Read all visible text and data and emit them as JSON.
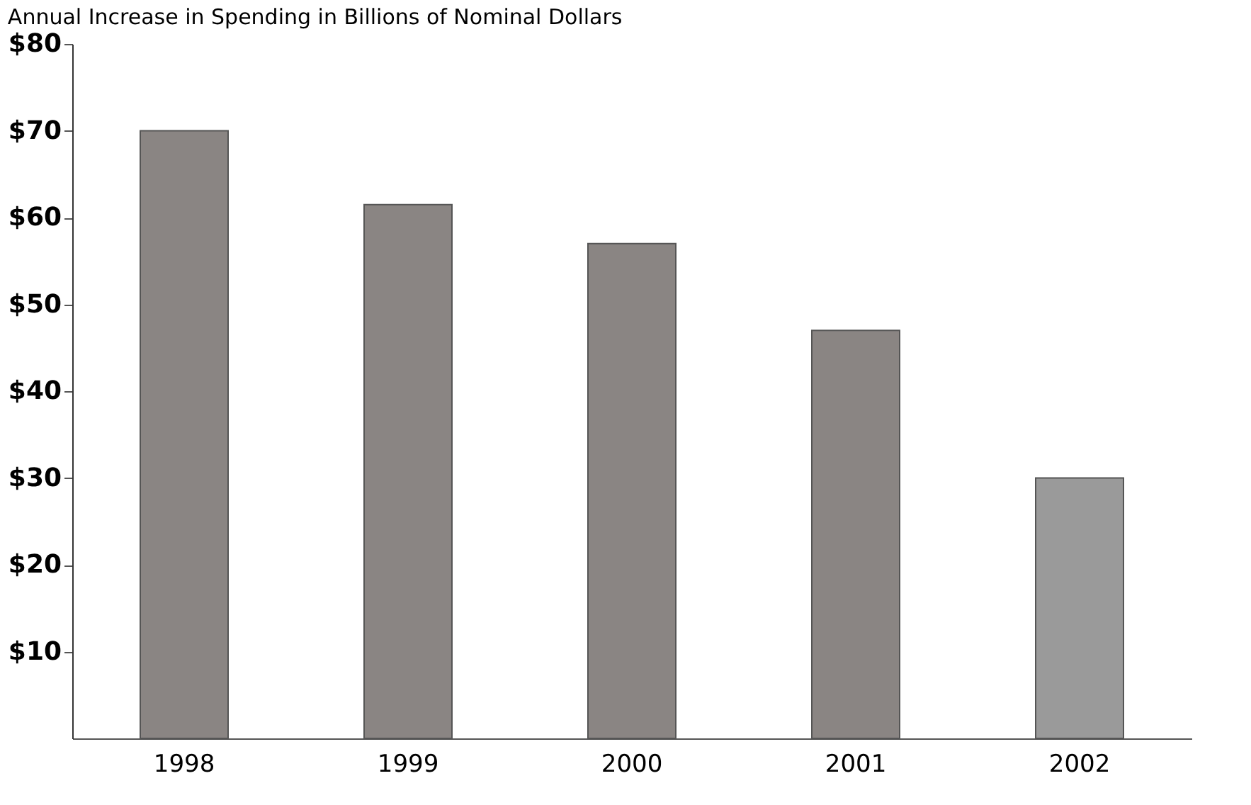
{
  "chart_data": {
    "type": "bar",
    "title": "Annual Increase in Spending in Billions of Nominal Dollars",
    "categories": [
      "1998",
      "1999",
      "2000",
      "2001",
      "2002"
    ],
    "values": [
      70,
      61.5,
      57,
      47,
      30
    ],
    "colors": [
      "#8a8583",
      "#8a8583",
      "#8a8583",
      "#8a8583",
      "#9a9a9a"
    ],
    "ylim": [
      0,
      80
    ],
    "yticks": [
      {
        "value": 10,
        "label": "$10"
      },
      {
        "value": 20,
        "label": "$20"
      },
      {
        "value": 30,
        "label": "$30"
      },
      {
        "value": 40,
        "label": "$40"
      },
      {
        "value": 50,
        "label": "$50"
      },
      {
        "value": 60,
        "label": "$60"
      },
      {
        "value": 70,
        "label": "$70"
      },
      {
        "value": 80,
        "label": "$80"
      }
    ],
    "grid": false
  }
}
